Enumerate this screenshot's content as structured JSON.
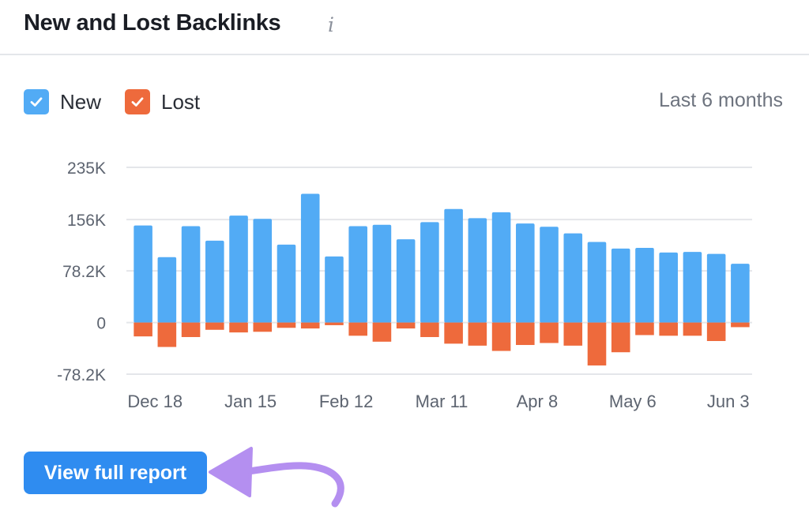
{
  "widget": {
    "title": "New and Lost Backlinks",
    "info_icon": "info-icon"
  },
  "legend": {
    "new_label": "New",
    "lost_label": "Lost",
    "period": "Last 6 months"
  },
  "button": {
    "label": "View full report"
  },
  "colors": {
    "new": "#52abf5",
    "lost": "#ee6a3c",
    "button": "#2f8cf0",
    "arrow": "#b48ff0",
    "grid": "#e4e6ea",
    "axis_text": "#5d6470"
  },
  "chart_data": {
    "type": "bar",
    "stacked": "diverging",
    "ylim": [
      -78200,
      235000
    ],
    "yticks": [
      235000,
      156000,
      78200,
      0,
      -78200
    ],
    "ytick_labels": [
      "235K",
      "156K",
      "78.2K",
      "0",
      "-78.2K"
    ],
    "xtick_labels": [
      "Dec 18",
      "Jan 15",
      "Feb 12",
      "Mar 11",
      "Apr 8",
      "May 6",
      "Jun 3"
    ],
    "xtick_bar_index": [
      0.5,
      4.5,
      8.5,
      12.5,
      16.5,
      20.5,
      24.5
    ],
    "grid": true,
    "legend_position": "top-left",
    "series": [
      {
        "name": "New",
        "values": [
          147000,
          99000,
          146000,
          124000,
          162000,
          157000,
          118000,
          195000,
          100000,
          146000,
          148000,
          126000,
          152000,
          172000,
          158000,
          167000,
          150000,
          145000,
          135000,
          122000,
          112000,
          113000,
          106000,
          107000,
          104000,
          89000
        ]
      },
      {
        "name": "Lost",
        "values": [
          -21000,
          -37000,
          -22000,
          -11000,
          -15000,
          -14000,
          -8000,
          -9000,
          -4000,
          -20000,
          -29000,
          -9000,
          -22000,
          -32000,
          -35000,
          -43000,
          -34000,
          -31000,
          -35000,
          -65000,
          -45000,
          -19000,
          -20000,
          -20000,
          -28000,
          -7000
        ]
      }
    ]
  }
}
